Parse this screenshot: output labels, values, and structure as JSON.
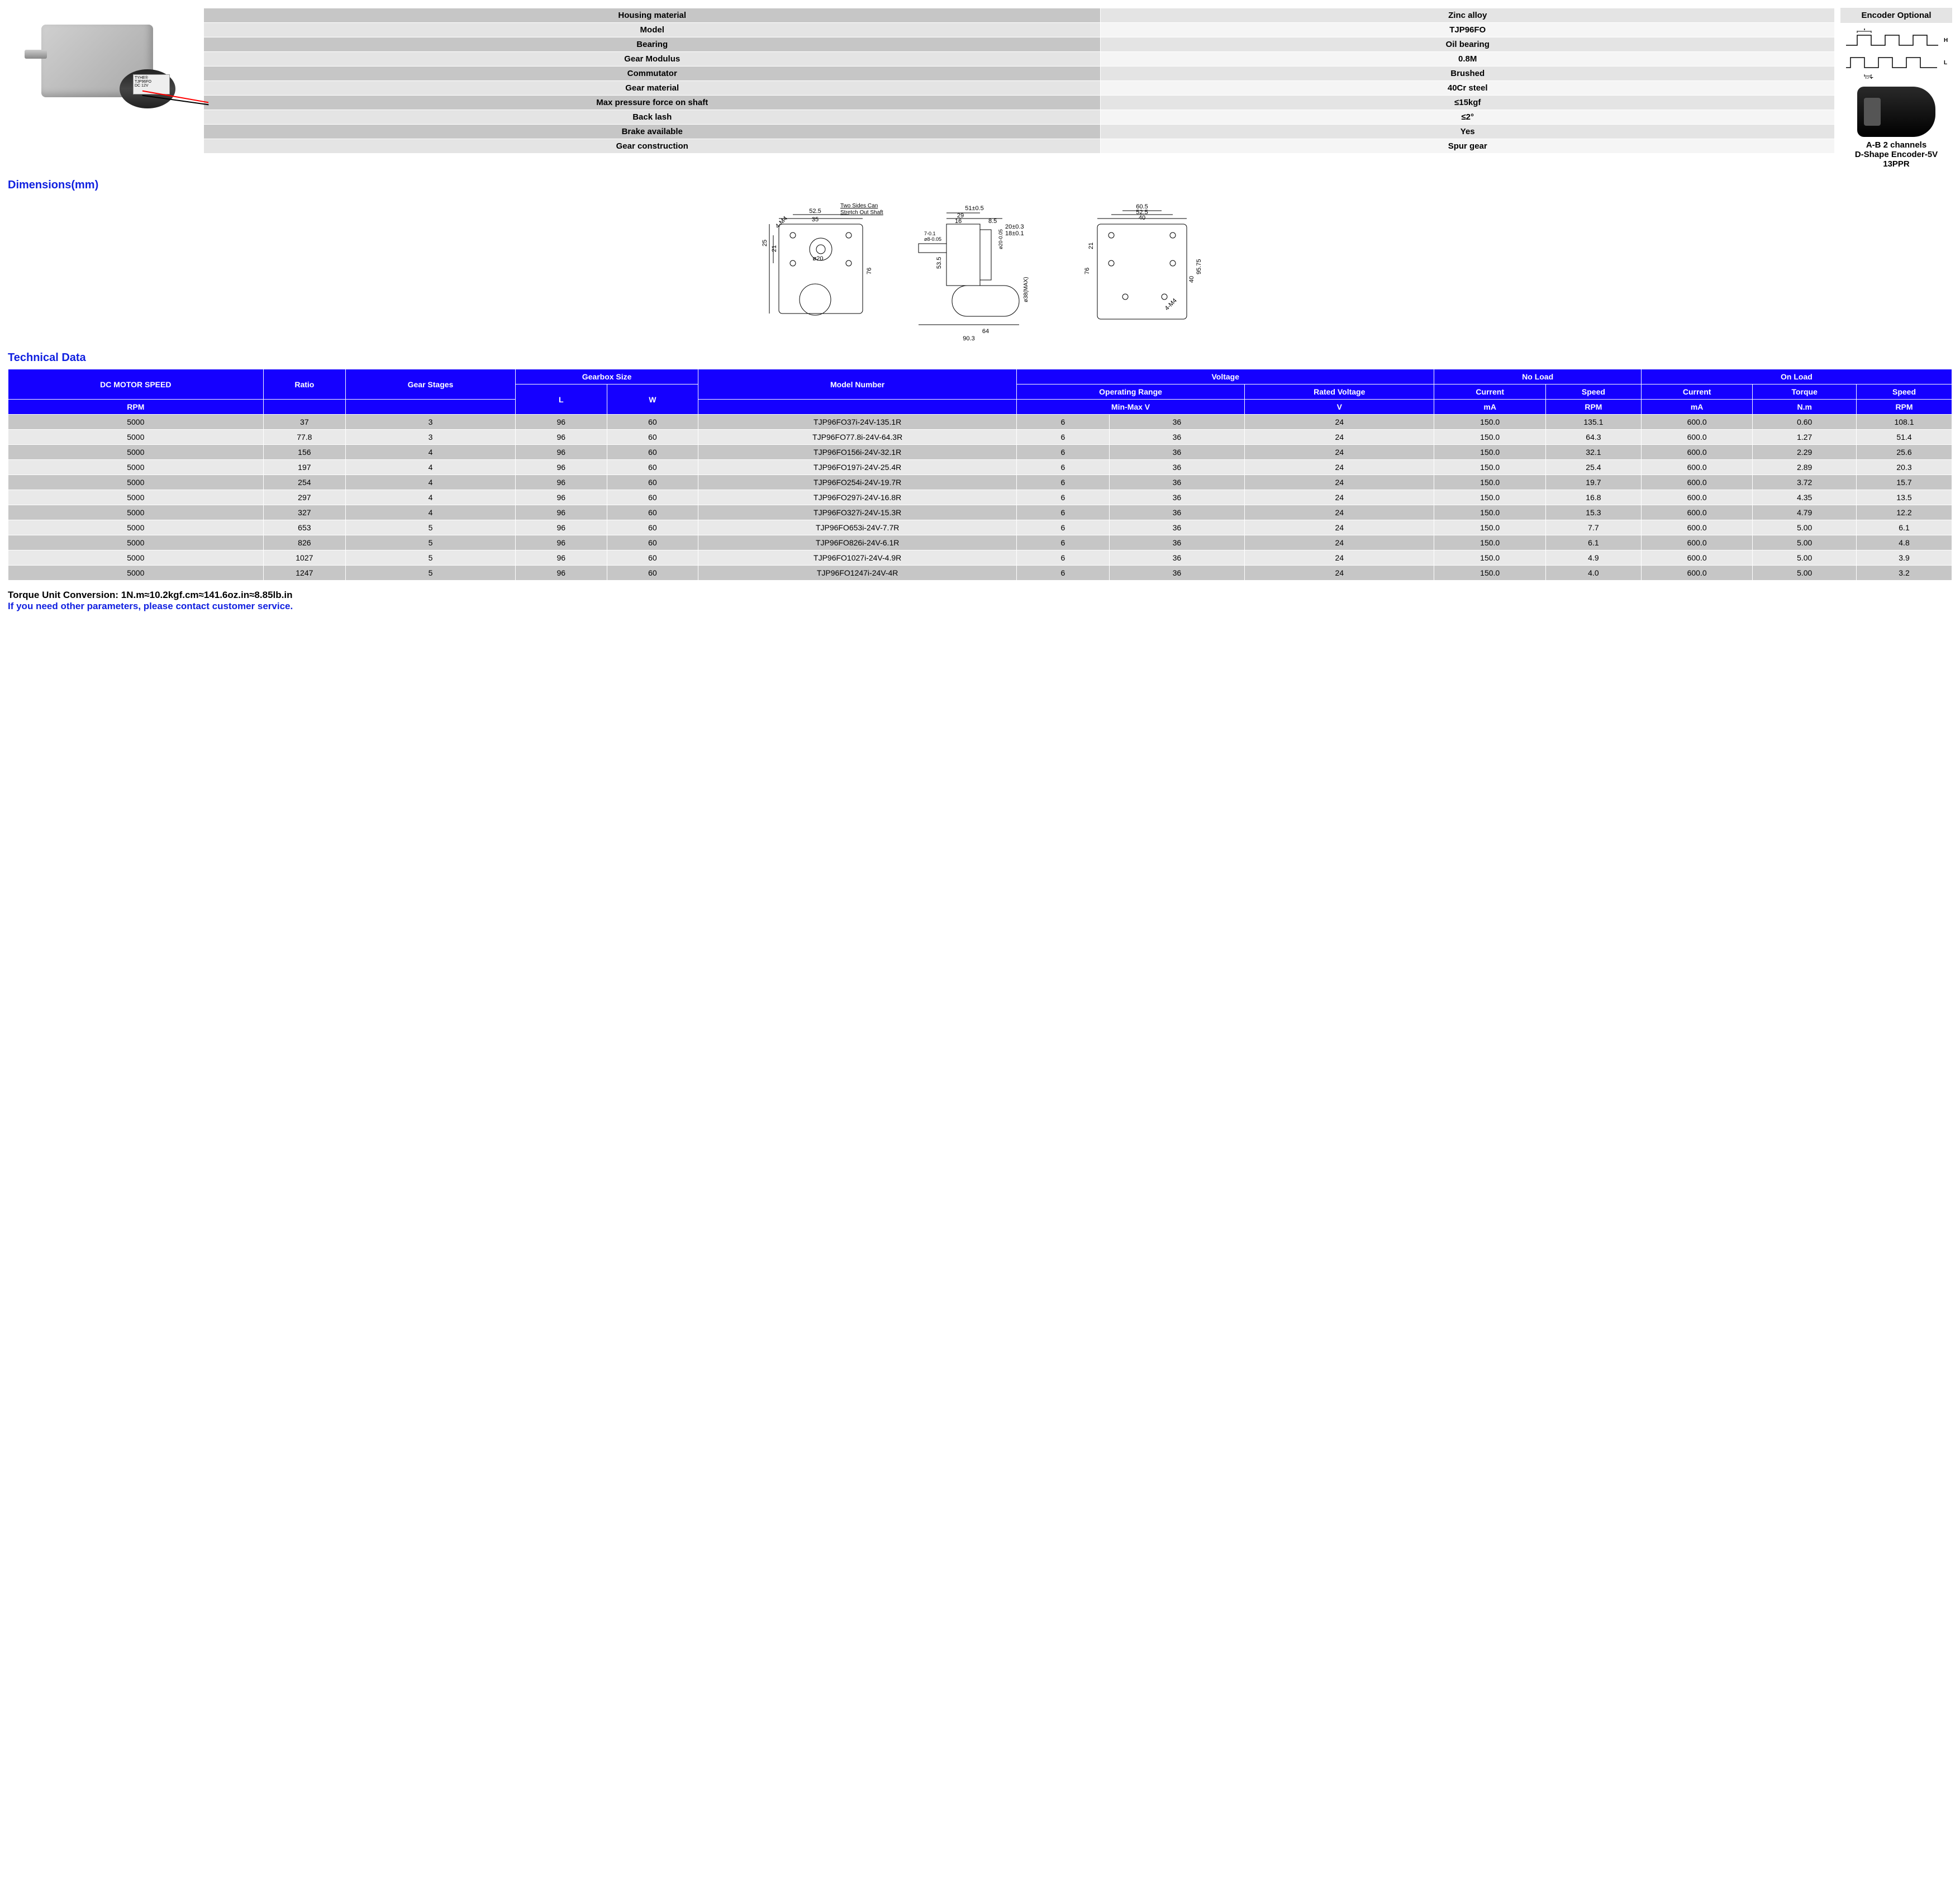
{
  "spec_rows": [
    [
      "Housing material",
      "Zinc alloy"
    ],
    [
      "Model",
      "TJP96FO"
    ],
    [
      "Bearing",
      "Oil bearing"
    ],
    [
      "Gear Modulus",
      "0.8M"
    ],
    [
      "Commutator",
      "Brushed"
    ],
    [
      "Gear material",
      "40Cr steel"
    ],
    [
      "Max pressure force on shaft",
      "≤15kgf"
    ],
    [
      "Back lash",
      "≤2°"
    ],
    [
      "Brake available",
      "Yes"
    ],
    [
      "Gear construction",
      "Spur gear"
    ]
  ],
  "encoder": {
    "title": "Encoder Optional",
    "caption1": "A-B 2 channels",
    "caption2": "D-Shape Encoder-5V 13PPR",
    "wave_labels": {
      "T": "T",
      "H": "H",
      "halfT": "½T",
      "L": "L"
    }
  },
  "sections": {
    "dimensions": "Dimensions(mm)",
    "techdata": "Technical Data"
  },
  "motor_label": "TYHE®\nTJP96FO\nDC 12V",
  "dims": {
    "note": "Two Sides Can\nStretch Out Shaft",
    "values": {
      "v1": "52.5",
      "v2": "35",
      "v3": "4-M4",
      "v4": "25",
      "v5": "21",
      "v6": "76",
      "v7": "ø20",
      "v8": "51±0.5",
      "v9": "29",
      "v10": "16",
      "v11": "8.5",
      "v12": "20±0.3",
      "v13": "18±0.1",
      "v14": "53.5",
      "v15": "64",
      "v16": "90.3",
      "v17": "ø38(MAX)",
      "v18": "ø8-0.05",
      "v19": "7-0.1",
      "v20": "ø20-0.05",
      "v21": "60.5",
      "v22": "52.5",
      "v23": "40",
      "v24": "21",
      "v25": "76",
      "v26": "40",
      "v27": "95.75",
      "v28": "4-M4"
    }
  },
  "tech_headers": {
    "h1": "DC MOTOR SPEED",
    "h2": "Ratio",
    "h3": "Gear Stages",
    "h4": "Gearbox Size",
    "h5": "Model Number",
    "h6": "Voltage",
    "h7": "No Load",
    "h8": "On Load",
    "s1": "Operating Range",
    "s2": "Rated Voltage",
    "s3": "Current",
    "s4": "Speed",
    "s5": "Current",
    "s6": "Torque",
    "s7": "Speed",
    "u1": "RPM",
    "u2": "L",
    "u3": "W",
    "u4": "Min-Max V",
    "u5": "V",
    "u6": "mA",
    "u7": "RPM",
    "u8": "mA",
    "u9": "N.m",
    "u10": "RPM"
  },
  "tech_rows": [
    [
      "5000",
      "37",
      "3",
      "96",
      "60",
      "TJP96FO37i-24V-135.1R",
      "6",
      "36",
      "24",
      "150.0",
      "135.1",
      "600.0",
      "0.60",
      "108.1"
    ],
    [
      "5000",
      "77.8",
      "3",
      "96",
      "60",
      "TJP96FO77.8i-24V-64.3R",
      "6",
      "36",
      "24",
      "150.0",
      "64.3",
      "600.0",
      "1.27",
      "51.4"
    ],
    [
      "5000",
      "156",
      "4",
      "96",
      "60",
      "TJP96FO156i-24V-32.1R",
      "6",
      "36",
      "24",
      "150.0",
      "32.1",
      "600.0",
      "2.29",
      "25.6"
    ],
    [
      "5000",
      "197",
      "4",
      "96",
      "60",
      "TJP96FO197i-24V-25.4R",
      "6",
      "36",
      "24",
      "150.0",
      "25.4",
      "600.0",
      "2.89",
      "20.3"
    ],
    [
      "5000",
      "254",
      "4",
      "96",
      "60",
      "TJP96FO254i-24V-19.7R",
      "6",
      "36",
      "24",
      "150.0",
      "19.7",
      "600.0",
      "3.72",
      "15.7"
    ],
    [
      "5000",
      "297",
      "4",
      "96",
      "60",
      "TJP96FO297i-24V-16.8R",
      "6",
      "36",
      "24",
      "150.0",
      "16.8",
      "600.0",
      "4.35",
      "13.5"
    ],
    [
      "5000",
      "327",
      "4",
      "96",
      "60",
      "TJP96FO327i-24V-15.3R",
      "6",
      "36",
      "24",
      "150.0",
      "15.3",
      "600.0",
      "4.79",
      "12.2"
    ],
    [
      "5000",
      "653",
      "5",
      "96",
      "60",
      "TJP96FO653i-24V-7.7R",
      "6",
      "36",
      "24",
      "150.0",
      "7.7",
      "600.0",
      "5.00",
      "6.1"
    ],
    [
      "5000",
      "826",
      "5",
      "96",
      "60",
      "TJP96FO826i-24V-6.1R",
      "6",
      "36",
      "24",
      "150.0",
      "6.1",
      "600.0",
      "5.00",
      "4.8"
    ],
    [
      "5000",
      "1027",
      "5",
      "96",
      "60",
      "TJP96FO1027i-24V-4.9R",
      "6",
      "36",
      "24",
      "150.0",
      "4.9",
      "600.0",
      "5.00",
      "3.9"
    ],
    [
      "5000",
      "1247",
      "5",
      "96",
      "60",
      "TJP96FO1247i-24V-4R",
      "6",
      "36",
      "24",
      "150.0",
      "4.0",
      "600.0",
      "5.00",
      "3.2"
    ]
  ],
  "footnote": {
    "line1": "Torque Unit Conversion: 1N.m≈10.2kgf.cm≈141.6oz.in≈8.85lb.in",
    "line2": "If you need other parameters, please contact customer service."
  },
  "colors": {
    "header_bg": "#1500ff",
    "header_fg": "#ffffff",
    "row_odd": "#c6c6c6",
    "row_even": "#e9e9e9",
    "section_title": "#1020e0",
    "spec_odd": "#c6c6c6",
    "spec_even": "#e4e4e4"
  }
}
